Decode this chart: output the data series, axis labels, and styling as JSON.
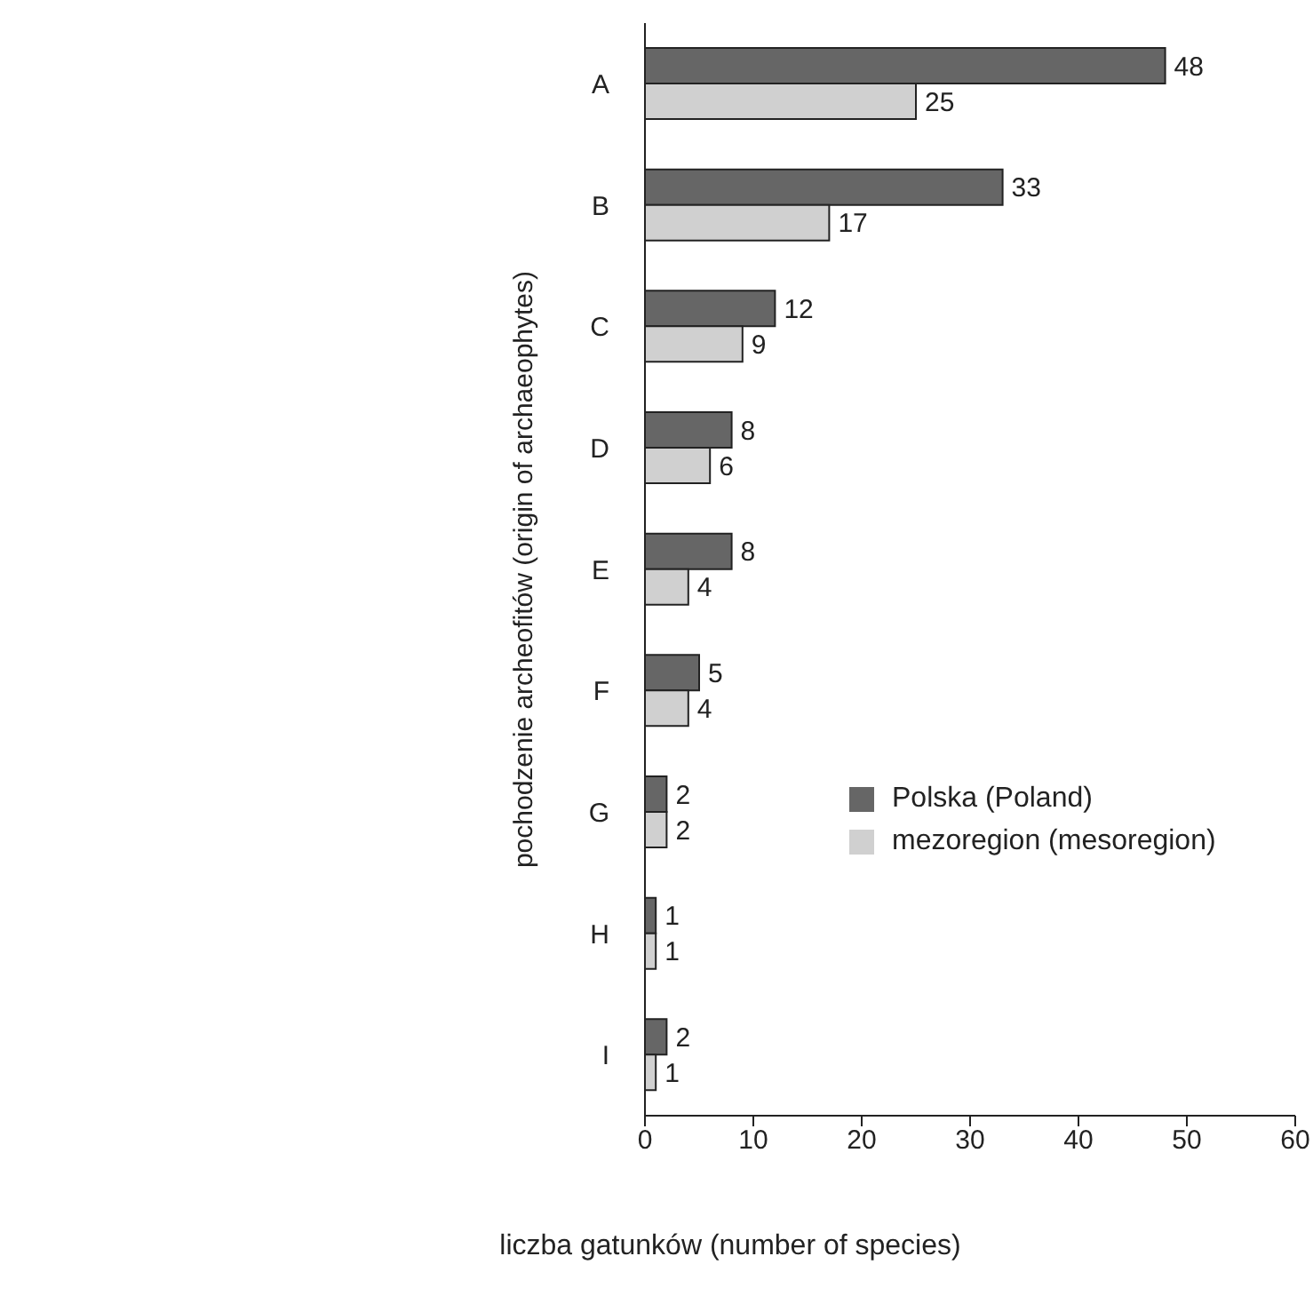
{
  "chart_data": {
    "type": "bar",
    "orientation": "horizontal",
    "xlabel": "liczba gatunków (number of species)",
    "ylabel": "pochodzenie archeofitów (origin of archaeophytes)",
    "categories": [
      "A",
      "B",
      "C",
      "D",
      "E",
      "F",
      "G",
      "H",
      "I"
    ],
    "series": [
      {
        "name": "Polska (Poland)",
        "color": "#666666",
        "values": [
          48,
          33,
          12,
          8,
          8,
          5,
          2,
          1,
          2
        ]
      },
      {
        "name": "mezoregion (mesoregion)",
        "color": "#d0d0d0",
        "values": [
          25,
          17,
          9,
          6,
          4,
          4,
          2,
          1,
          1
        ]
      }
    ],
    "xlim": [
      0,
      60
    ],
    "xticks": [
      0,
      10,
      20,
      30,
      40,
      50,
      60
    ],
    "data_labels": true,
    "grid": false,
    "legend": "right"
  }
}
